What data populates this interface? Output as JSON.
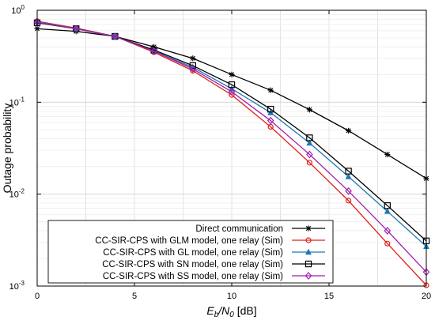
{
  "chart_data": {
    "type": "line",
    "xlabel_parts": {
      "pre": "E",
      "sub1": "b",
      "mid": "/N",
      "sub2": "0",
      "post": " [dB]"
    },
    "ylabel": "Outage probability",
    "xlim": [
      0,
      20
    ],
    "ylim": [
      0.001,
      1
    ],
    "yscale": "log",
    "grid": true,
    "legend_position": "bottom-left",
    "x_ticks": [
      {
        "value": 0,
        "label": "0"
      },
      {
        "value": 5,
        "label": "5"
      },
      {
        "value": 10,
        "label": "10"
      },
      {
        "value": 15,
        "label": "15"
      },
      {
        "value": 20,
        "label": "20"
      }
    ],
    "y_ticks": [
      {
        "value": 0.001,
        "base": "10",
        "exp": "-3"
      },
      {
        "value": 0.01,
        "base": "10",
        "exp": "-2"
      },
      {
        "value": 0.1,
        "base": "10",
        "exp": "-1"
      },
      {
        "value": 1,
        "base": "10",
        "exp": "0"
      }
    ],
    "series": [
      {
        "name": "Direct communication",
        "color": "#000000",
        "marker": "star",
        "x": [
          0,
          2,
          4,
          6,
          8,
          10,
          12,
          14,
          16,
          18,
          20
        ],
        "y": [
          0.63,
          0.59,
          0.52,
          0.4,
          0.3,
          0.2,
          0.135,
          0.083,
          0.049,
          0.027,
          0.0148
        ]
      },
      {
        "name": "CC-SIR-CPS with GLM model, one relay (Sim)",
        "color": "#e0201b",
        "marker": "circle",
        "x": [
          0,
          2,
          4,
          6,
          8,
          10,
          12,
          14,
          16,
          18,
          20
        ],
        "y": [
          0.76,
          0.64,
          0.52,
          0.35,
          0.22,
          0.12,
          0.054,
          0.022,
          0.0085,
          0.0029,
          0.00102
        ]
      },
      {
        "name": "CC-SIR-CPS with GL model, one relay (Sim)",
        "color": "#1f77b4",
        "marker": "triangle",
        "x": [
          0,
          2,
          4,
          6,
          8,
          10,
          12,
          14,
          16,
          18,
          20
        ],
        "y": [
          0.75,
          0.63,
          0.52,
          0.36,
          0.24,
          0.14,
          0.077,
          0.036,
          0.0155,
          0.0065,
          0.0027
        ]
      },
      {
        "name": "CC-SIR-CPS with SN model, one relay (Sim)",
        "color": "#000000",
        "marker": "square",
        "x": [
          0,
          2,
          4,
          6,
          8,
          10,
          12,
          14,
          16,
          18,
          20
        ],
        "y": [
          0.73,
          0.63,
          0.52,
          0.37,
          0.25,
          0.155,
          0.084,
          0.041,
          0.0178,
          0.0075,
          0.0031
        ]
      },
      {
        "name": "CC-SIR-CPS with SS model, one relay (Sim)",
        "color": "#a020b0",
        "marker": "diamond",
        "x": [
          0,
          2,
          4,
          6,
          8,
          10,
          12,
          14,
          16,
          18,
          20
        ],
        "y": [
          0.74,
          0.63,
          0.52,
          0.36,
          0.23,
          0.13,
          0.063,
          0.027,
          0.0108,
          0.004,
          0.00142
        ]
      }
    ]
  }
}
